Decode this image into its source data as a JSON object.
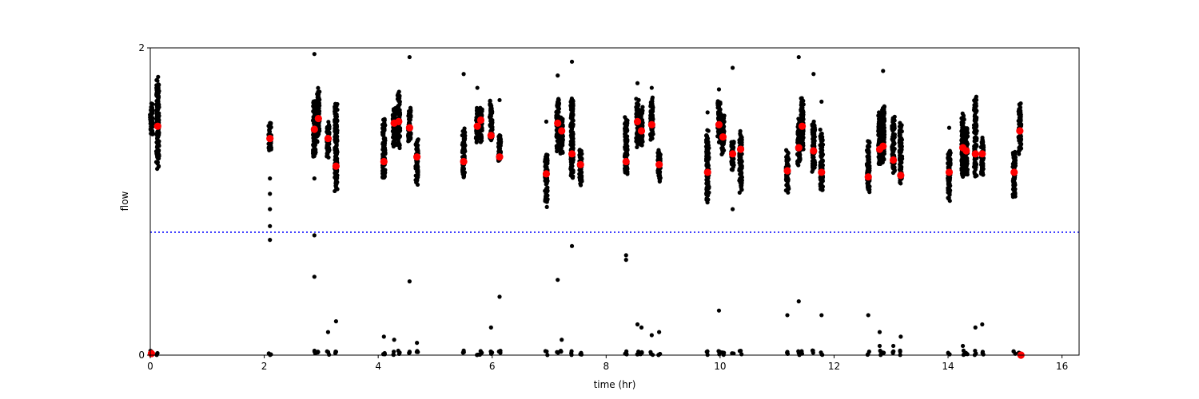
{
  "chart_data": {
    "type": "scatter",
    "title": "",
    "xlabel": "time (hr)",
    "ylabel": "flow",
    "xlim": [
      0,
      16.3
    ],
    "ylim": [
      0,
      2
    ],
    "x_ticks": [
      "0",
      "2",
      "4",
      "6",
      "8",
      "10",
      "12",
      "14",
      "16"
    ],
    "y_ticks": [
      "0",
      "2"
    ],
    "grid": false,
    "legend": "none",
    "colors": {
      "raw": "#000000",
      "median": "#ff0000",
      "threshold": "#0000ff"
    },
    "threshold": {
      "y": 0.8,
      "style": "dotted"
    },
    "series": [
      {
        "role": "raw-samples",
        "clusters": [
          {
            "x": 0.02,
            "ymin": 1.42,
            "ymax": 1.65,
            "zeros": true
          },
          {
            "x": 0.13,
            "ymin": 1.2,
            "ymax": 1.84,
            "zeros": true
          },
          {
            "x": 2.1,
            "ymin": 1.32,
            "ymax": 1.52,
            "zeros": true,
            "extra": [
              1.15,
              1.05,
              0.95,
              0.84,
              0.75
            ]
          },
          {
            "x": 2.88,
            "ymin": 1.27,
            "ymax": 1.66,
            "zeros": true,
            "extra": [
              1.96,
              1.15,
              0.78,
              0.51
            ]
          },
          {
            "x": 2.95,
            "ymin": 1.38,
            "ymax": 1.74,
            "zeros": true
          },
          {
            "x": 3.12,
            "ymin": 1.28,
            "ymax": 1.52,
            "zeros": true,
            "extra": [
              0.15
            ]
          },
          {
            "x": 3.26,
            "ymin": 1.05,
            "ymax": 1.65,
            "zeros": true,
            "extra": [
              0.22
            ]
          },
          {
            "x": 4.1,
            "ymin": 1.12,
            "ymax": 1.55,
            "zeros": true,
            "extra": [
              0.12
            ]
          },
          {
            "x": 4.28,
            "ymin": 1.34,
            "ymax": 1.62,
            "zeros": true,
            "extra": [
              0.1
            ]
          },
          {
            "x": 4.36,
            "ymin": 1.34,
            "ymax": 1.72,
            "zeros": true
          },
          {
            "x": 4.55,
            "ymin": 1.38,
            "ymax": 1.62,
            "zeros": true,
            "extra": [
              1.94,
              0.48
            ]
          },
          {
            "x": 4.68,
            "ymin": 1.1,
            "ymax": 1.42,
            "zeros": true,
            "extra": [
              0.08
            ]
          },
          {
            "x": 5.5,
            "ymin": 1.13,
            "ymax": 1.48,
            "zeros": true,
            "extra": [
              1.83
            ]
          },
          {
            "x": 5.74,
            "ymin": 1.38,
            "ymax": 1.62,
            "zeros": true,
            "extra": [
              1.74
            ]
          },
          {
            "x": 5.8,
            "ymin": 1.38,
            "ymax": 1.62,
            "zeros": true
          },
          {
            "x": 5.98,
            "ymin": 1.38,
            "ymax": 1.66,
            "zeros": true,
            "extra": [
              0.18
            ]
          },
          {
            "x": 6.13,
            "ymin": 1.25,
            "ymax": 1.44,
            "zeros": true,
            "extra": [
              1.66,
              0.38
            ]
          },
          {
            "x": 6.95,
            "ymin": 0.96,
            "ymax": 1.32,
            "zeros": true,
            "extra": [
              1.52
            ]
          },
          {
            "x": 7.15,
            "ymin": 1.3,
            "ymax": 1.7,
            "zeros": true,
            "extra": [
              1.82,
              0.49
            ]
          },
          {
            "x": 7.22,
            "ymin": 1.3,
            "ymax": 1.55,
            "zeros": true,
            "extra": [
              0.1
            ]
          },
          {
            "x": 7.4,
            "ymin": 1.15,
            "ymax": 1.7,
            "zeros": true,
            "extra": [
              1.91,
              0.71
            ]
          },
          {
            "x": 7.55,
            "ymin": 1.1,
            "ymax": 1.35,
            "zeros": true
          },
          {
            "x": 8.35,
            "ymin": 1.15,
            "ymax": 1.56,
            "zeros": true,
            "extra": [
              0.65,
              0.62
            ]
          },
          {
            "x": 8.55,
            "ymin": 1.35,
            "ymax": 1.68,
            "zeros": true,
            "extra": [
              1.77,
              0.2
            ]
          },
          {
            "x": 8.62,
            "ymin": 1.35,
            "ymax": 1.62,
            "zeros": true,
            "extra": [
              0.18
            ]
          },
          {
            "x": 8.8,
            "ymin": 1.4,
            "ymax": 1.68,
            "zeros": true,
            "extra": [
              1.74,
              0.13
            ]
          },
          {
            "x": 8.93,
            "ymin": 1.12,
            "ymax": 1.34,
            "zeros": true,
            "extra": [
              0.15
            ]
          },
          {
            "x": 9.78,
            "ymin": 0.98,
            "ymax": 1.48,
            "zeros": true,
            "extra": [
              1.58
            ]
          },
          {
            "x": 9.98,
            "ymin": 1.38,
            "ymax": 1.68,
            "zeros": true,
            "extra": [
              1.73,
              0.29
            ]
          },
          {
            "x": 10.05,
            "ymin": 1.3,
            "ymax": 1.58,
            "zeros": true
          },
          {
            "x": 10.22,
            "ymin": 1.2,
            "ymax": 1.42,
            "zeros": true,
            "extra": [
              1.87,
              0.95
            ]
          },
          {
            "x": 10.36,
            "ymin": 1.05,
            "ymax": 1.46,
            "zeros": true
          },
          {
            "x": 11.18,
            "ymin": 1.05,
            "ymax": 1.34,
            "zeros": true,
            "extra": [
              0.26
            ]
          },
          {
            "x": 11.38,
            "ymin": 1.22,
            "ymax": 1.55,
            "zeros": true,
            "extra": [
              1.94,
              0.35
            ]
          },
          {
            "x": 11.44,
            "ymin": 1.32,
            "ymax": 1.68,
            "zeros": true
          },
          {
            "x": 11.64,
            "ymin": 1.18,
            "ymax": 1.55,
            "zeros": true,
            "extra": [
              1.83
            ]
          },
          {
            "x": 11.78,
            "ymin": 1.05,
            "ymax": 1.48,
            "zeros": true,
            "extra": [
              1.65,
              0.26
            ]
          },
          {
            "x": 12.6,
            "ymin": 1.05,
            "ymax": 1.4,
            "zeros": true,
            "extra": [
              0.26
            ]
          },
          {
            "x": 12.8,
            "ymin": 1.22,
            "ymax": 1.6,
            "zeros": true,
            "extra": [
              0.15,
              0.06
            ]
          },
          {
            "x": 12.86,
            "ymin": 1.22,
            "ymax": 1.65,
            "zeros": true,
            "extra": [
              1.85
            ]
          },
          {
            "x": 13.04,
            "ymin": 1.18,
            "ymax": 1.58,
            "zeros": true,
            "extra": [
              0.06
            ]
          },
          {
            "x": 13.17,
            "ymin": 1.1,
            "ymax": 1.52,
            "zeros": true,
            "extra": [
              0.12
            ]
          },
          {
            "x": 14.02,
            "ymin": 1.0,
            "ymax": 1.34,
            "zeros": true,
            "extra": [
              1.48
            ]
          },
          {
            "x": 14.26,
            "ymin": 1.15,
            "ymax": 1.58,
            "zeros": true,
            "extra": [
              0.06
            ]
          },
          {
            "x": 14.32,
            "ymin": 1.15,
            "ymax": 1.5,
            "zeros": true
          },
          {
            "x": 14.48,
            "ymin": 1.15,
            "ymax": 1.7,
            "zeros": true,
            "extra": [
              0.18
            ]
          },
          {
            "x": 14.6,
            "ymin": 1.15,
            "ymax": 1.42,
            "zeros": true,
            "extra": [
              0.2
            ]
          },
          {
            "x": 15.16,
            "ymin": 1.02,
            "ymax": 1.34,
            "zeros": true
          },
          {
            "x": 15.26,
            "ymin": 1.3,
            "ymax": 1.65,
            "zeros": true
          }
        ]
      },
      {
        "role": "medians",
        "x": [
          0.13,
          2.1,
          2.88,
          2.95,
          3.12,
          3.26,
          4.1,
          4.28,
          4.36,
          4.55,
          4.68,
          5.5,
          5.74,
          5.8,
          5.98,
          6.13,
          6.95,
          7.15,
          7.22,
          7.4,
          7.55,
          8.35,
          8.55,
          8.62,
          8.8,
          8.93,
          9.78,
          9.98,
          10.05,
          10.22,
          10.36,
          11.18,
          11.38,
          11.44,
          11.64,
          11.78,
          12.6,
          12.8,
          12.86,
          13.04,
          13.17,
          14.02,
          14.26,
          14.32,
          14.48,
          14.6,
          15.16,
          15.26,
          0.02,
          15.28
        ],
        "y": [
          1.49,
          1.41,
          1.47,
          1.54,
          1.41,
          1.23,
          1.26,
          1.51,
          1.52,
          1.48,
          1.29,
          1.26,
          1.49,
          1.53,
          1.43,
          1.29,
          1.18,
          1.51,
          1.46,
          1.31,
          1.24,
          1.26,
          1.52,
          1.46,
          1.5,
          1.24,
          1.19,
          1.5,
          1.42,
          1.31,
          1.34,
          1.2,
          1.35,
          1.49,
          1.33,
          1.19,
          1.16,
          1.34,
          1.36,
          1.27,
          1.17,
          1.19,
          1.35,
          1.33,
          1.31,
          1.31,
          1.19,
          1.46,
          0.01,
          0.0
        ]
      }
    ]
  }
}
